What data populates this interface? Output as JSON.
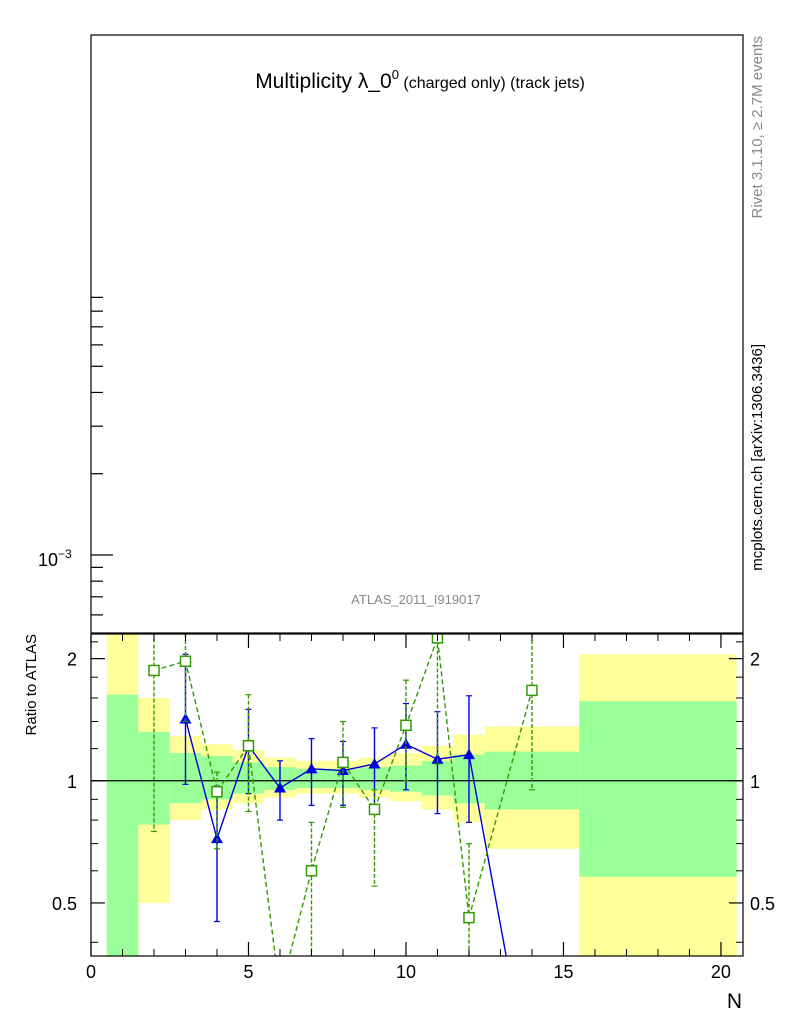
{
  "title": {
    "main": "Multiplicity λ_0",
    "sup": "0",
    "sub": " (charged only) (track jets)"
  },
  "side_labels": {
    "events": "Rivet 3.1.10, ≥ 2.7M events",
    "source": "mcplots.cern.ch [arXiv:1306.3436]"
  },
  "analysis_label": "ATLAS_2011_I919017",
  "colors": {
    "band_inner": "#99ff99",
    "band_outer": "#ffff99",
    "series_blue": "#0000dd",
    "series_green": "#339900"
  },
  "chart_data": [
    {
      "type": "line",
      "panel": "main",
      "yscale": "log",
      "ytick_label": "10",
      "ytick_exponent": "−3",
      "ytick_value": 0.001,
      "series": []
    },
    {
      "type": "line",
      "panel": "ratio",
      "ylabel": "Ratio to ATLAS",
      "xlabel": "N",
      "xlim": [
        0,
        20.7
      ],
      "ylim": [
        0.37,
        2.3
      ],
      "xticks": [
        0,
        5,
        10,
        15,
        20
      ],
      "xtick_labels": [
        "0",
        "5",
        "10",
        "15",
        "20"
      ],
      "yticks": [
        0.5,
        1,
        2
      ],
      "ytick_labels": [
        "0.5",
        "1",
        "2"
      ],
      "reference_line": 1,
      "bands": [
        {
          "x0": 0.5,
          "x1": 1.5,
          "inner": [
            0.37,
            1.63
          ],
          "outer": [
            0.37,
            2.3
          ]
        },
        {
          "x0": 1.5,
          "x1": 2.5,
          "inner": [
            0.78,
            1.32
          ],
          "outer": [
            0.5,
            1.6
          ]
        },
        {
          "x0": 2.5,
          "x1": 3.5,
          "inner": [
            0.88,
            1.17
          ],
          "outer": [
            0.8,
            1.29
          ]
        },
        {
          "x0": 3.5,
          "x1": 4.5,
          "inner": [
            0.9,
            1.15
          ],
          "outer": [
            0.85,
            1.23
          ]
        },
        {
          "x0": 4.5,
          "x1": 5.5,
          "inner": [
            0.93,
            1.11
          ],
          "outer": [
            0.88,
            1.19
          ]
        },
        {
          "x0": 5.5,
          "x1": 6.5,
          "inner": [
            0.95,
            1.08
          ],
          "outer": [
            0.91,
            1.14
          ]
        },
        {
          "x0": 6.5,
          "x1": 7.5,
          "inner": [
            0.96,
            1.07
          ],
          "outer": [
            0.93,
            1.12
          ]
        },
        {
          "x0": 7.5,
          "x1": 8.5,
          "inner": [
            0.96,
            1.07
          ],
          "outer": [
            0.93,
            1.12
          ]
        },
        {
          "x0": 8.5,
          "x1": 9.5,
          "inner": [
            0.95,
            1.08
          ],
          "outer": [
            0.91,
            1.14
          ]
        },
        {
          "x0": 9.5,
          "x1": 10.5,
          "inner": [
            0.94,
            1.09
          ],
          "outer": [
            0.89,
            1.17
          ]
        },
        {
          "x0": 10.5,
          "x1": 11.5,
          "inner": [
            0.92,
            1.12
          ],
          "outer": [
            0.85,
            1.22
          ]
        },
        {
          "x0": 11.5,
          "x1": 12.5,
          "inner": [
            0.88,
            1.16
          ],
          "outer": [
            0.79,
            1.3
          ]
        },
        {
          "x0": 12.5,
          "x1": 15.5,
          "inner": [
            0.85,
            1.18
          ],
          "outer": [
            0.68,
            1.36
          ]
        },
        {
          "x0": 15.5,
          "x1": 20.5,
          "inner": [
            0.58,
            1.57
          ],
          "outer": [
            0.37,
            2.05
          ]
        }
      ],
      "series": [
        {
          "marker": "filled-triangle",
          "color": "#0000dd",
          "linestyle": "solid",
          "points": [
            {
              "x": 3,
              "y": 1.42,
              "err_lo": 0.98,
              "err_hi": 2.05
            },
            {
              "x": 4,
              "y": 0.72,
              "err_lo": 0.45,
              "err_hi": 0.97
            },
            {
              "x": 5,
              "y": 1.22,
              "err_lo": 0.93,
              "err_hi": 1.5
            },
            {
              "x": 6,
              "y": 0.96,
              "err_lo": 0.8,
              "err_hi": 1.12
            },
            {
              "x": 7,
              "y": 1.07,
              "err_lo": 0.87,
              "err_hi": 1.27
            },
            {
              "x": 8,
              "y": 1.06,
              "err_lo": 0.87,
              "err_hi": 1.25
            },
            {
              "x": 9,
              "y": 1.1,
              "err_lo": 0.85,
              "err_hi": 1.35
            },
            {
              "x": 10,
              "y": 1.23,
              "err_lo": 0.95,
              "err_hi": 1.55
            },
            {
              "x": 11,
              "y": 1.13,
              "err_lo": 0.83,
              "err_hi": 1.48
            },
            {
              "x": 12,
              "y": 1.16,
              "err_lo": 0.79,
              "err_hi": 1.62
            },
            {
              "x": 13.3,
              "y": 0.33
            }
          ]
        },
        {
          "marker": "open-square",
          "color": "#339900",
          "linestyle": "dashed",
          "points": [
            {
              "x": 2,
              "y": 1.87,
              "err_lo": 0.75,
              "err_hi": 2.4
            },
            {
              "x": 3,
              "y": 1.97,
              "err_lo": 1.4,
              "err_hi": 2.3
            },
            {
              "x": 4,
              "y": 0.94,
              "err_lo": 0.68,
              "err_hi": 1.05
            },
            {
              "x": 5,
              "y": 1.22,
              "err_lo": 0.84,
              "err_hi": 1.63
            },
            {
              "x": 6,
              "y": 0.3
            },
            {
              "x": 7,
              "y": 0.6,
              "err_lo": 0.3,
              "err_hi": 0.79
            },
            {
              "x": 8,
              "y": 1.11,
              "err_lo": 0.86,
              "err_hi": 1.4
            },
            {
              "x": 9,
              "y": 0.85,
              "err_lo": 0.55,
              "err_hi": 0.95
            },
            {
              "x": 10,
              "y": 1.37,
              "err_lo": 1.0,
              "err_hi": 1.77
            },
            {
              "x": 11,
              "y": 2.25,
              "err_lo": 1.1,
              "err_hi": 2.4
            },
            {
              "x": 12,
              "y": 0.46,
              "err_lo": 0.3,
              "err_hi": 0.7
            },
            {
              "x": 14,
              "y": 1.67,
              "err_lo": 0.95,
              "err_hi": 2.3
            }
          ]
        }
      ]
    }
  ]
}
